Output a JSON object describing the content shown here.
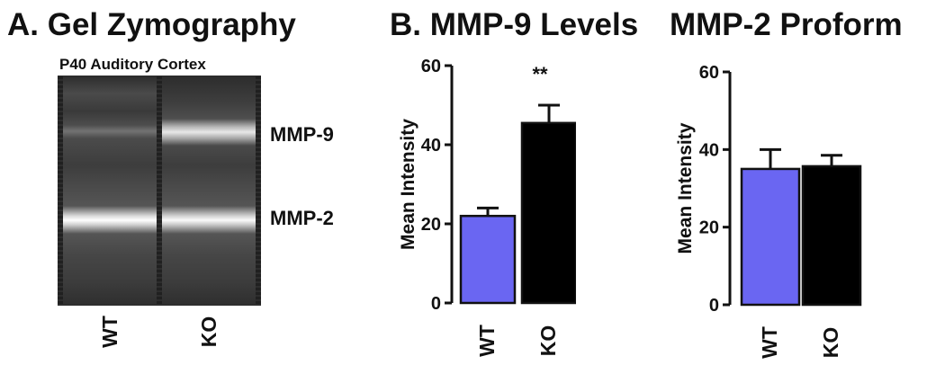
{
  "panel_a": {
    "title": "A. Gel Zymography",
    "subtitle": "P40 Auditory Cortex",
    "bands": [
      "MMP-9",
      "MMP-2"
    ],
    "lanes": [
      "WT",
      "KO"
    ]
  },
  "chart_data": [
    {
      "type": "bar",
      "title": "B. MMP-9 Levels",
      "ylabel": "Mean Intensity",
      "xlabel": "",
      "categories": [
        "WT",
        "KO"
      ],
      "values": [
        22,
        45.5
      ],
      "errors": [
        2,
        4.5
      ],
      "ylim": [
        0,
        60
      ],
      "yticks": [
        "0",
        "20",
        "40",
        "60"
      ],
      "colors": [
        "#6a66f2",
        "#000000"
      ],
      "annotation": "**",
      "grid": false
    },
    {
      "type": "bar",
      "title": "MMP-2 Proform",
      "ylabel": "Mean Intensity",
      "xlabel": "",
      "categories": [
        "WT",
        "KO"
      ],
      "values": [
        35,
        35.7
      ],
      "errors": [
        5,
        2.8
      ],
      "ylim": [
        0,
        60
      ],
      "yticks": [
        "0",
        "20",
        "40",
        "60"
      ],
      "colors": [
        "#6a66f2",
        "#000000"
      ],
      "grid": false
    }
  ]
}
